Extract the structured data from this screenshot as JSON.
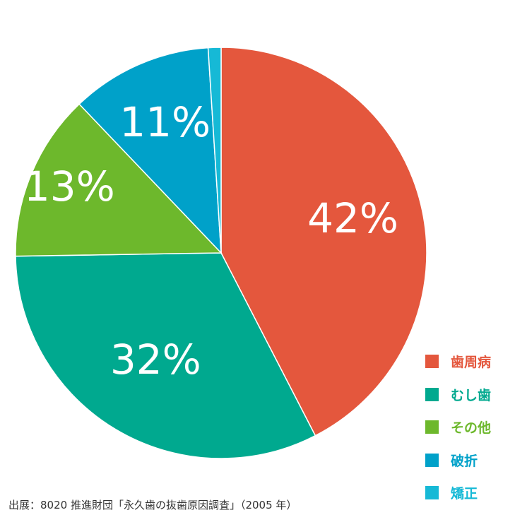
{
  "chart_data": {
    "type": "pie",
    "title": "",
    "start": "top",
    "direction": "clockwise",
    "slices": [
      {
        "label": "歯周病",
        "value": 42,
        "display": "42%",
        "color": "#E4573D"
      },
      {
        "label": "むし歯",
        "value": 32,
        "display": "32%",
        "color": "#00A98F"
      },
      {
        "label": "その他",
        "value": 13,
        "display": "13%",
        "color": "#6DB82C"
      },
      {
        "label": "破折",
        "value": 11,
        "display": "11%",
        "color": "#00A1C9"
      },
      {
        "label": "矯正",
        "value": 1,
        "display": "1%",
        "color": "#16B9D6"
      }
    ],
    "legend_position": "bottom-right"
  },
  "source": "出展：8020 推進財団「永久歯の抜歯原因調査」（2005 年）"
}
